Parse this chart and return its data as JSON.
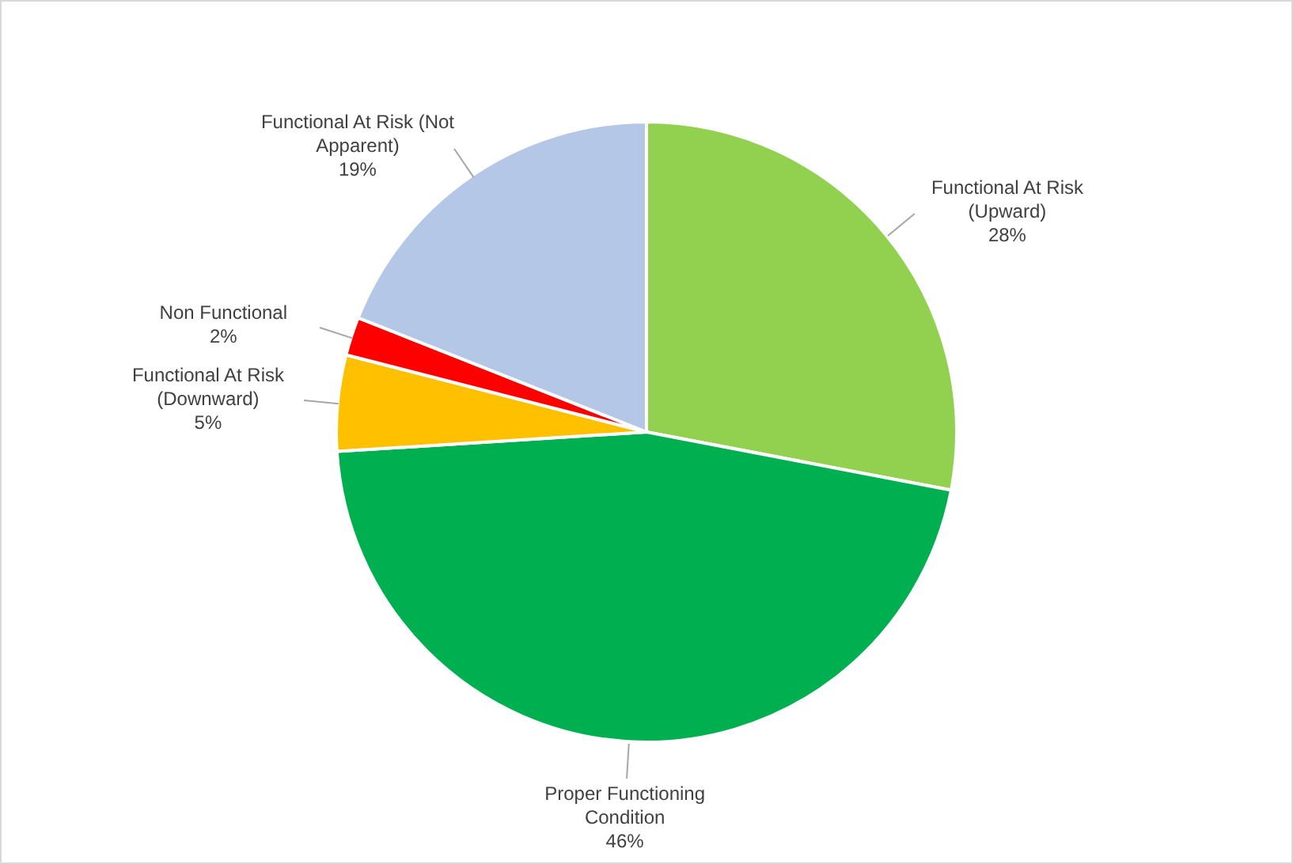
{
  "chart_data": {
    "type": "pie",
    "categories": [
      "Functional At Risk (Upward)",
      "Proper Functioning Condition",
      "Functional At Risk (Downward)",
      "Non Functional",
      "Functional At Risk (Not Apparent)"
    ],
    "values": [
      28,
      46,
      5,
      2,
      19
    ],
    "colors": [
      "#92d050",
      "#00b050",
      "#ffc000",
      "#ff0000",
      "#b4c7e7"
    ],
    "value_labels": [
      "28%",
      "46%",
      "5%",
      "2%",
      "19%"
    ],
    "legend": false
  }
}
